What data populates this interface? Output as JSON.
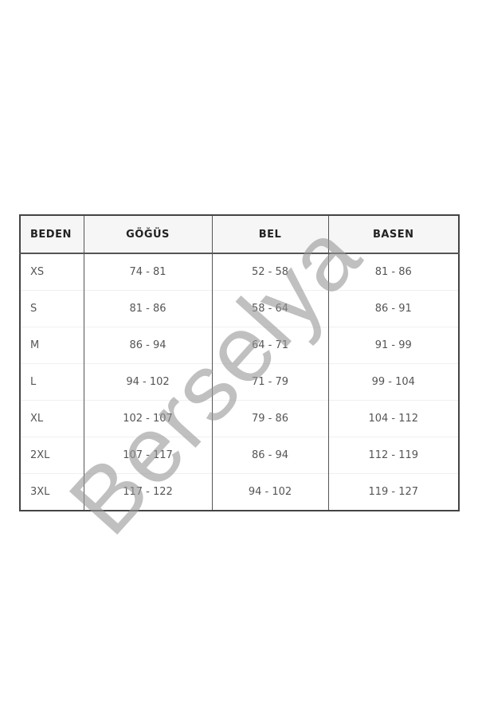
{
  "table": {
    "headers": [
      "BEDEN",
      "GÖĞÜS",
      "BEL",
      "BASEN"
    ],
    "rows": [
      [
        "XS",
        "74 - 81",
        "52 - 58",
        "81 - 86"
      ],
      [
        "S",
        "81 - 86",
        "58 - 64",
        "86 - 91"
      ],
      [
        "M",
        "86 - 94",
        "64 - 71",
        "91 - 99"
      ],
      [
        "L",
        "94 - 102",
        "71 - 79",
        "99 - 104"
      ],
      [
        "XL",
        "102 - 107",
        "79 - 86",
        "104 - 112"
      ],
      [
        "2XL",
        "107 - 117",
        "86 - 94",
        "112 - 119"
      ],
      [
        "3XL",
        "117 - 122",
        "94 - 102",
        "119 - 127"
      ]
    ]
  },
  "watermark": "Berselya"
}
